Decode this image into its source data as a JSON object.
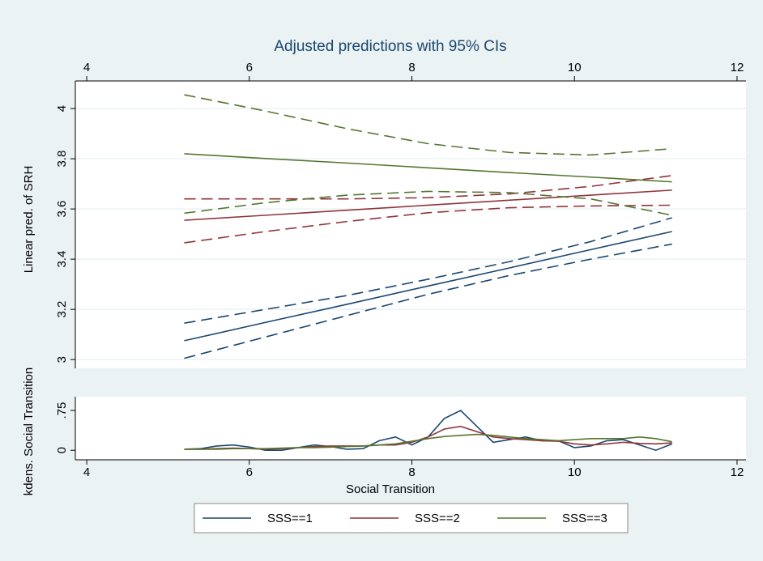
{
  "chart_data": [
    {
      "type": "line",
      "title": "Adjusted predictions with 95% CIs",
      "ylabel": "Linear pred. of SRH",
      "x": [
        5.2,
        6.2,
        7.2,
        8.2,
        9.2,
        10.2,
        11.2
      ],
      "xlim": [
        3.86,
        12.11
      ],
      "xticks": [
        4,
        6,
        8,
        10,
        12
      ],
      "xaxis": "top",
      "ylim": [
        2.965,
        4.11
      ],
      "yticks": [
        3,
        3.2,
        3.4,
        3.6,
        3.8,
        4
      ],
      "grid": true,
      "series": [
        {
          "color": "#1a476f",
          "dashed": false,
          "values": [
            3.075,
            3.148,
            3.22,
            3.293,
            3.365,
            3.438,
            3.51
          ]
        },
        {
          "color": "#1a476f",
          "dashed": true,
          "values": [
            3.145,
            3.2,
            3.255,
            3.32,
            3.39,
            3.47,
            3.565
          ]
        },
        {
          "color": "#1a476f",
          "dashed": true,
          "values": [
            3.005,
            3.09,
            3.175,
            3.26,
            3.335,
            3.4,
            3.46
          ]
        },
        {
          "color": "#90353b",
          "dashed": false,
          "values": [
            3.555,
            3.575,
            3.595,
            3.615,
            3.635,
            3.655,
            3.675
          ]
        },
        {
          "color": "#90353b",
          "dashed": true,
          "values": [
            3.64,
            3.64,
            3.64,
            3.645,
            3.66,
            3.69,
            3.733
          ]
        },
        {
          "color": "#90353b",
          "dashed": true,
          "values": [
            3.465,
            3.51,
            3.55,
            3.585,
            3.605,
            3.612,
            3.615
          ]
        },
        {
          "color": "#55752f",
          "dashed": false,
          "values": [
            3.82,
            3.801,
            3.783,
            3.764,
            3.745,
            3.727,
            3.708
          ]
        },
        {
          "color": "#55752f",
          "dashed": true,
          "values": [
            4.055,
            3.99,
            3.92,
            3.86,
            3.825,
            3.815,
            3.84
          ]
        },
        {
          "color": "#55752f",
          "dashed": true,
          "values": [
            3.583,
            3.625,
            3.655,
            3.67,
            3.665,
            3.64,
            3.575
          ]
        }
      ]
    },
    {
      "type": "line",
      "xlabel": "Social Transition",
      "ylabel": "kdens. Social Transition",
      "x": [
        5.2,
        5.4,
        5.6,
        5.8,
        6.0,
        6.2,
        6.4,
        6.6,
        6.8,
        7.0,
        7.2,
        7.4,
        7.6,
        7.8,
        8.0,
        8.2,
        8.4,
        8.6,
        8.8,
        9.0,
        9.2,
        9.4,
        9.6,
        9.8,
        10.0,
        10.2,
        10.4,
        10.6,
        10.8,
        11.0,
        11.2
      ],
      "xlim": [
        3.86,
        12.11
      ],
      "xticks": [
        4,
        6,
        8,
        10,
        12
      ],
      "xaxis": "bottom",
      "ylim": [
        -0.18,
        1.01
      ],
      "yticks": [
        0,
        {
          "value": 0.75,
          "label": ".75"
        }
      ],
      "grid": false,
      "series": [
        {
          "name": "SSS==1",
          "color": "#1a476f",
          "dashed": false,
          "values": [
            0.02,
            0.03,
            0.08,
            0.1,
            0.06,
            0.0,
            0.0,
            0.05,
            0.1,
            0.07,
            0.02,
            0.03,
            0.18,
            0.25,
            0.1,
            0.25,
            0.6,
            0.75,
            0.45,
            0.15,
            0.2,
            0.25,
            0.18,
            0.18,
            0.05,
            0.08,
            0.18,
            0.2,
            0.1,
            0.0,
            0.12
          ]
        },
        {
          "name": "SSS==2",
          "color": "#90353b",
          "dashed": false,
          "values": [
            0.02,
            0.02,
            0.03,
            0.04,
            0.03,
            0.02,
            0.03,
            0.05,
            0.07,
            0.08,
            0.08,
            0.08,
            0.1,
            0.1,
            0.15,
            0.25,
            0.4,
            0.45,
            0.35,
            0.25,
            0.22,
            0.2,
            0.18,
            0.17,
            0.12,
            0.1,
            0.12,
            0.15,
            0.13,
            0.12,
            0.14
          ]
        },
        {
          "name": "SSS==3",
          "color": "#55752f",
          "dashed": false,
          "values": [
            0.02,
            0.02,
            0.02,
            0.03,
            0.03,
            0.03,
            0.04,
            0.05,
            0.05,
            0.06,
            0.07,
            0.08,
            0.1,
            0.12,
            0.17,
            0.22,
            0.26,
            0.28,
            0.3,
            0.28,
            0.25,
            0.22,
            0.2,
            0.18,
            0.2,
            0.22,
            0.22,
            0.22,
            0.25,
            0.22,
            0.16
          ]
        }
      ]
    }
  ]
}
